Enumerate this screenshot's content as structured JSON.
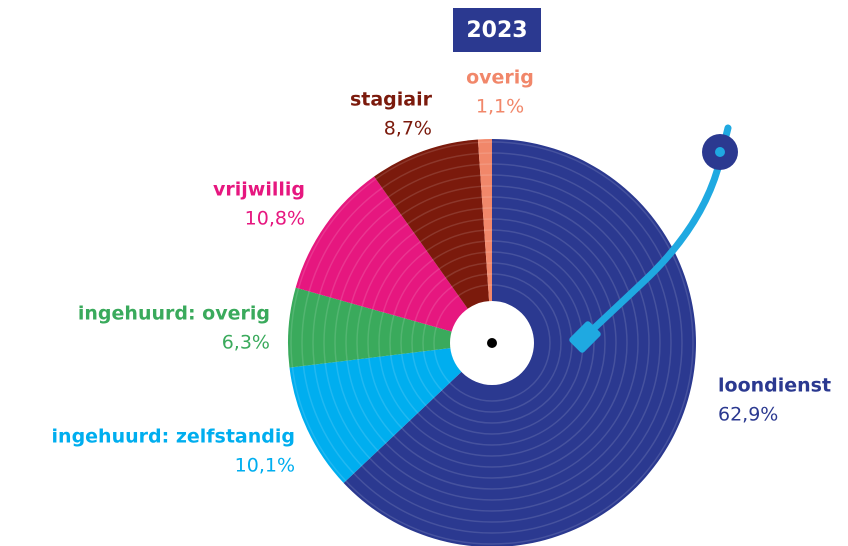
{
  "chart_data": {
    "type": "pie",
    "title": "2023",
    "categories": [
      "loondienst",
      "ingehuurd: zelfstandig",
      "ingehuurd: overig",
      "vrijwillig",
      "stagiair",
      "overig"
    ],
    "values": [
      62.9,
      10.1,
      6.3,
      10.8,
      8.7,
      1.1
    ],
    "value_labels": [
      "62,9%",
      "10,1%",
      "6,3%",
      "10,8%",
      "8,7%",
      "1,1%"
    ],
    "colors": [
      "#2b3990",
      "#00aeef",
      "#3aaa5c",
      "#e6177f",
      "#7b1a0c",
      "#f1876a"
    ]
  }
}
